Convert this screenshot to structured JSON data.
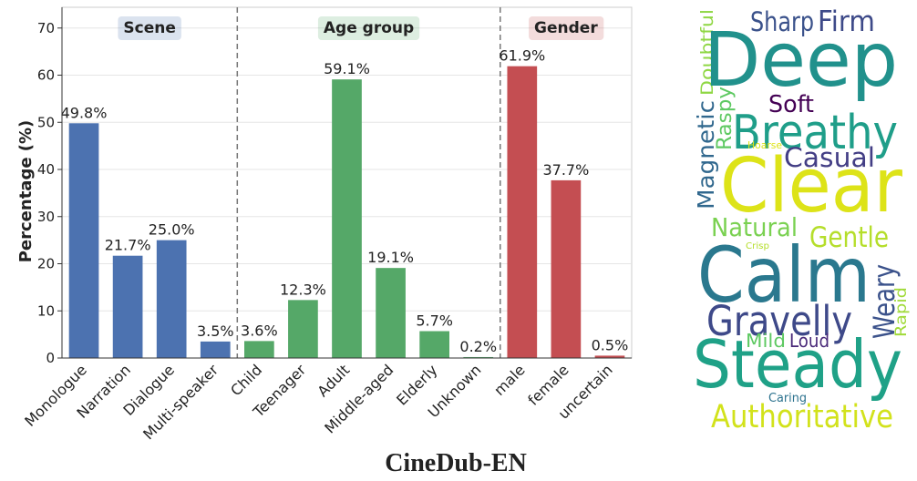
{
  "chart_data": {
    "type": "bar",
    "y_label": "Percentage (%)",
    "caption": "CineDub-EN",
    "ylim": [
      0,
      74.4
    ],
    "yticks": [
      0,
      10,
      20,
      30,
      40,
      50,
      60,
      70
    ],
    "grid": true,
    "groups": [
      {
        "name": "Scene",
        "color": "#4c72b0",
        "categories": [
          "Monologue",
          "Narration",
          "Dialogue",
          "Multi-speaker"
        ],
        "values": [
          49.8,
          21.7,
          25.0,
          3.5
        ],
        "value_labels": [
          "49.8%",
          "21.7%",
          "25.0%",
          "3.5%"
        ]
      },
      {
        "name": "Age group",
        "color": "#55a868",
        "categories": [
          "Child",
          "Teenager",
          "Adult",
          "Middle-aged",
          "Elderly",
          "Unknown"
        ],
        "values": [
          3.6,
          12.3,
          59.1,
          19.1,
          5.7,
          0.2
        ],
        "value_labels": [
          "3.6%",
          "12.3%",
          "59.1%",
          "19.1%",
          "5.7%",
          "0.2%"
        ]
      },
      {
        "name": "Gender",
        "color": "#c44e52",
        "categories": [
          "male",
          "female",
          "uncertain"
        ],
        "values": [
          61.9,
          37.7,
          0.5
        ],
        "value_labels": [
          "61.9%",
          "37.7%",
          "0.5%"
        ]
      }
    ]
  },
  "word_cloud": {
    "words": [
      {
        "text": "Sharp",
        "color": "#3b528b"
      },
      {
        "text": "Firm",
        "color": "#3e4a89"
      },
      {
        "text": "Doubtful",
        "color": "#8fd744"
      },
      {
        "text": "Deep",
        "color": "#21918c"
      },
      {
        "text": "Soft",
        "color": "#440154"
      },
      {
        "text": "Magnetic",
        "color": "#31688e"
      },
      {
        "text": "Raspy",
        "color": "#5ec962"
      },
      {
        "text": "Breathy",
        "color": "#1f9e89"
      },
      {
        "text": "Hoarse",
        "color": "#dde318"
      },
      {
        "text": "Casual",
        "color": "#433e85"
      },
      {
        "text": "Clear",
        "color": "#dde318"
      },
      {
        "text": "Natural",
        "color": "#7ad151"
      },
      {
        "text": "Gentle",
        "color": "#b5de2b"
      },
      {
        "text": "Crisp",
        "color": "#b5de2b"
      },
      {
        "text": "Calm",
        "color": "#2a788e"
      },
      {
        "text": "Weary",
        "color": "#3b528b"
      },
      {
        "text": "Rapid",
        "color": "#a0da39"
      },
      {
        "text": "Gravelly",
        "color": "#3e4989"
      },
      {
        "text": "Mild",
        "color": "#5ec962"
      },
      {
        "text": "Loud",
        "color": "#482878"
      },
      {
        "text": "Steady",
        "color": "#1fa187"
      },
      {
        "text": "Caring",
        "color": "#2c728e"
      },
      {
        "text": "Authoritative",
        "color": "#d2e21b"
      }
    ]
  }
}
